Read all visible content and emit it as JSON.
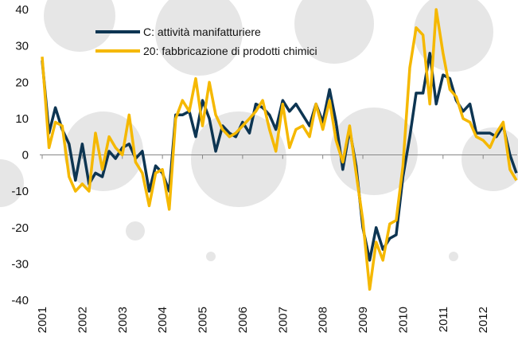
{
  "chart_data": {
    "type": "line",
    "x": [
      2001,
      2001.17,
      2001.33,
      2001.5,
      2001.67,
      2001.83,
      2002,
      2002.17,
      2002.33,
      2002.5,
      2002.67,
      2002.83,
      2003,
      2003.17,
      2003.33,
      2003.5,
      2003.67,
      2003.83,
      2004,
      2004.17,
      2004.33,
      2004.5,
      2004.67,
      2004.83,
      2005,
      2005.17,
      2005.33,
      2005.5,
      2005.67,
      2005.83,
      2006,
      2006.17,
      2006.33,
      2006.5,
      2006.67,
      2006.83,
      2007,
      2007.17,
      2007.33,
      2007.5,
      2007.67,
      2007.83,
      2008,
      2008.17,
      2008.33,
      2008.5,
      2008.67,
      2008.83,
      2009,
      2009.17,
      2009.33,
      2009.5,
      2009.67,
      2009.83,
      2010,
      2010.17,
      2010.33,
      2010.5,
      2010.67,
      2010.83,
      2011,
      2011.17,
      2011.33,
      2011.5,
      2011.67,
      2011.83,
      2012,
      2012.17,
      2012.33,
      2012.5,
      2012.67,
      2012.83
    ],
    "series": [
      {
        "name": "C: attività manifatturiere",
        "color": "#0d3552",
        "values": [
          26,
          6,
          13,
          7,
          3,
          -7,
          3,
          -8,
          -5,
          -6,
          1,
          -1,
          2,
          3,
          -1,
          1,
          -10,
          -3,
          -5,
          -10,
          11,
          11,
          12,
          5,
          15,
          10,
          1,
          8,
          6,
          5,
          9,
          6,
          14,
          13,
          11,
          7,
          15,
          12,
          14,
          11,
          8,
          14,
          9,
          18,
          9,
          -4,
          7,
          -3,
          -20,
          -29,
          -20,
          -26,
          -23,
          -22,
          -6,
          5,
          17,
          17,
          28,
          14,
          22,
          21,
          15,
          12,
          14,
          6,
          6,
          6,
          5,
          8,
          0,
          -5
        ]
      },
      {
        "name": "20: fabbricazione di prodotti chimici",
        "color": "#f5b800",
        "values": [
          27,
          2,
          9,
          8,
          -6,
          -10,
          -8,
          -10,
          6,
          -4,
          5,
          2,
          0,
          11,
          -2,
          -5,
          -14,
          -5,
          -4,
          -15,
          10,
          15,
          12,
          21,
          8,
          20,
          11,
          7,
          5,
          6,
          8,
          10,
          12,
          15,
          7,
          1,
          14,
          2,
          7,
          8,
          5,
          14,
          7,
          15,
          4,
          -2,
          8,
          -5,
          -18,
          -37,
          -24,
          -29,
          -19,
          -18,
          -3,
          24,
          35,
          33,
          14,
          40,
          28,
          18,
          16,
          10,
          9,
          5,
          4,
          2,
          6,
          9,
          -4,
          -7
        ]
      }
    ],
    "xlim": [
      2001,
      2012.85
    ],
    "xticks": [
      2001,
      2002,
      2003,
      2004,
      2005,
      2006,
      2007,
      2008,
      2009,
      2010,
      2011,
      2012
    ],
    "ylim": [
      -40,
      40
    ],
    "yticks": [
      -40,
      -30,
      -20,
      -10,
      0,
      10,
      20,
      30,
      40
    ]
  }
}
